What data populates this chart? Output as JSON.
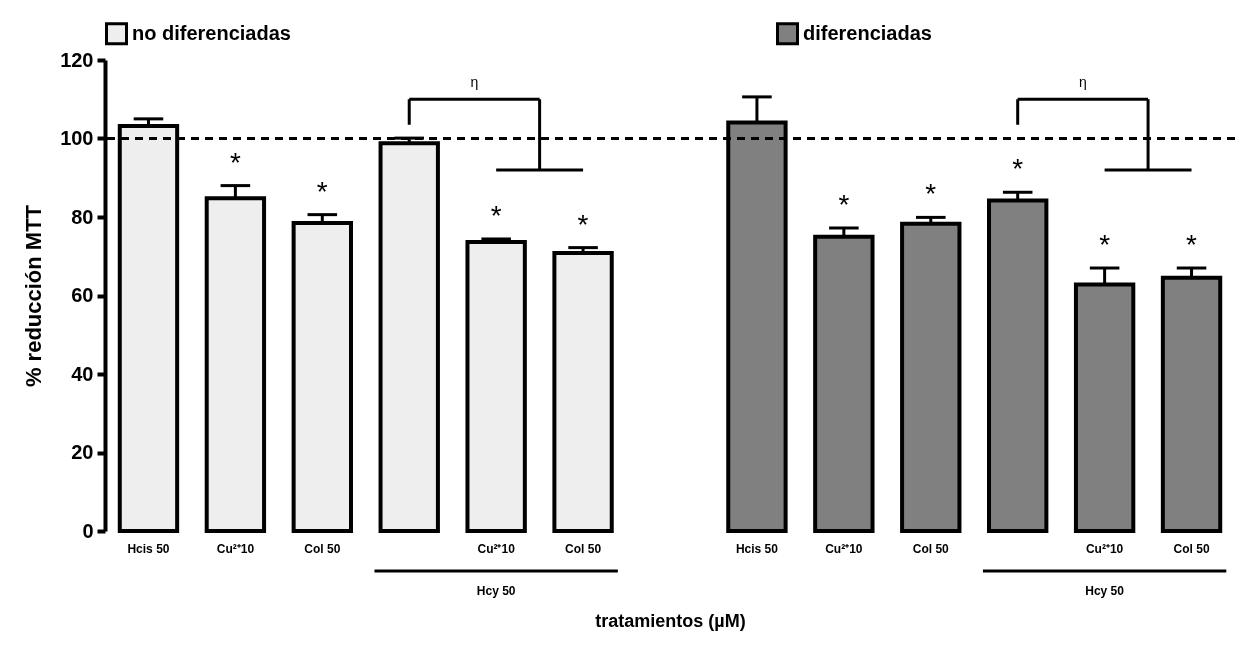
{
  "chart_data": {
    "type": "bar",
    "xlabel": "tratamientos (µM)",
    "ylabel": "% reducción MTT",
    "categories": [
      "Hcis 50",
      "Cu²⁺10",
      "Col 50",
      null,
      "Cu²⁺10",
      "Col 50",
      null,
      "Hcis 50",
      "Cu²⁺10",
      "Col 50",
      null,
      "Cu²⁺10",
      "Col 50"
    ],
    "series": [
      {
        "name": "no diferenciadas",
        "color": "#eeeeee",
        "values": [
          103.2,
          84.8,
          78.5,
          98.8,
          73.6,
          70.8,
          null,
          null,
          null,
          null,
          null,
          null,
          null
        ],
        "errors": [
          [
            103.2,
            105.0
          ],
          [
            84.8,
            88.0
          ],
          [
            78.5,
            80.6
          ],
          [
            98.8,
            100.1
          ],
          [
            73.6,
            74.4
          ],
          [
            70.8,
            72.2
          ],
          null,
          null,
          null,
          null,
          null,
          null,
          null
        ],
        "value_labels": [
          null,
          "*",
          "*",
          null,
          "*",
          "*",
          null,
          null,
          null,
          null,
          null,
          null,
          null
        ]
      },
      {
        "name": "diferenciadas",
        "color": "#808080",
        "values": [
          null,
          null,
          null,
          null,
          null,
          null,
          null,
          104.1,
          75.0,
          78.3,
          84.2,
          62.8,
          64.5
        ],
        "errors": [
          null,
          null,
          null,
          null,
          null,
          null,
          null,
          [
            104.1,
            110.6
          ],
          [
            75.0,
            77.2
          ],
          [
            78.3,
            79.9
          ],
          [
            84.2,
            86.3
          ],
          [
            62.8,
            67.0
          ],
          [
            64.5,
            67.0
          ]
        ],
        "value_labels": [
          null,
          null,
          null,
          null,
          null,
          null,
          null,
          null,
          "*",
          "*",
          "*",
          "*",
          "*"
        ]
      }
    ],
    "ylim": [
      0,
      120
    ],
    "yticks": [
      0,
      20,
      40,
      60,
      80,
      100,
      120
    ],
    "grid": false,
    "legend": "top",
    "ref_lines": [
      {
        "axis": "y",
        "value": 100,
        "line_style": "dashed",
        "color": "#000000"
      }
    ],
    "annotations": [
      "η",
      "η",
      "Hcy 50",
      "Hcy 50"
    ]
  }
}
